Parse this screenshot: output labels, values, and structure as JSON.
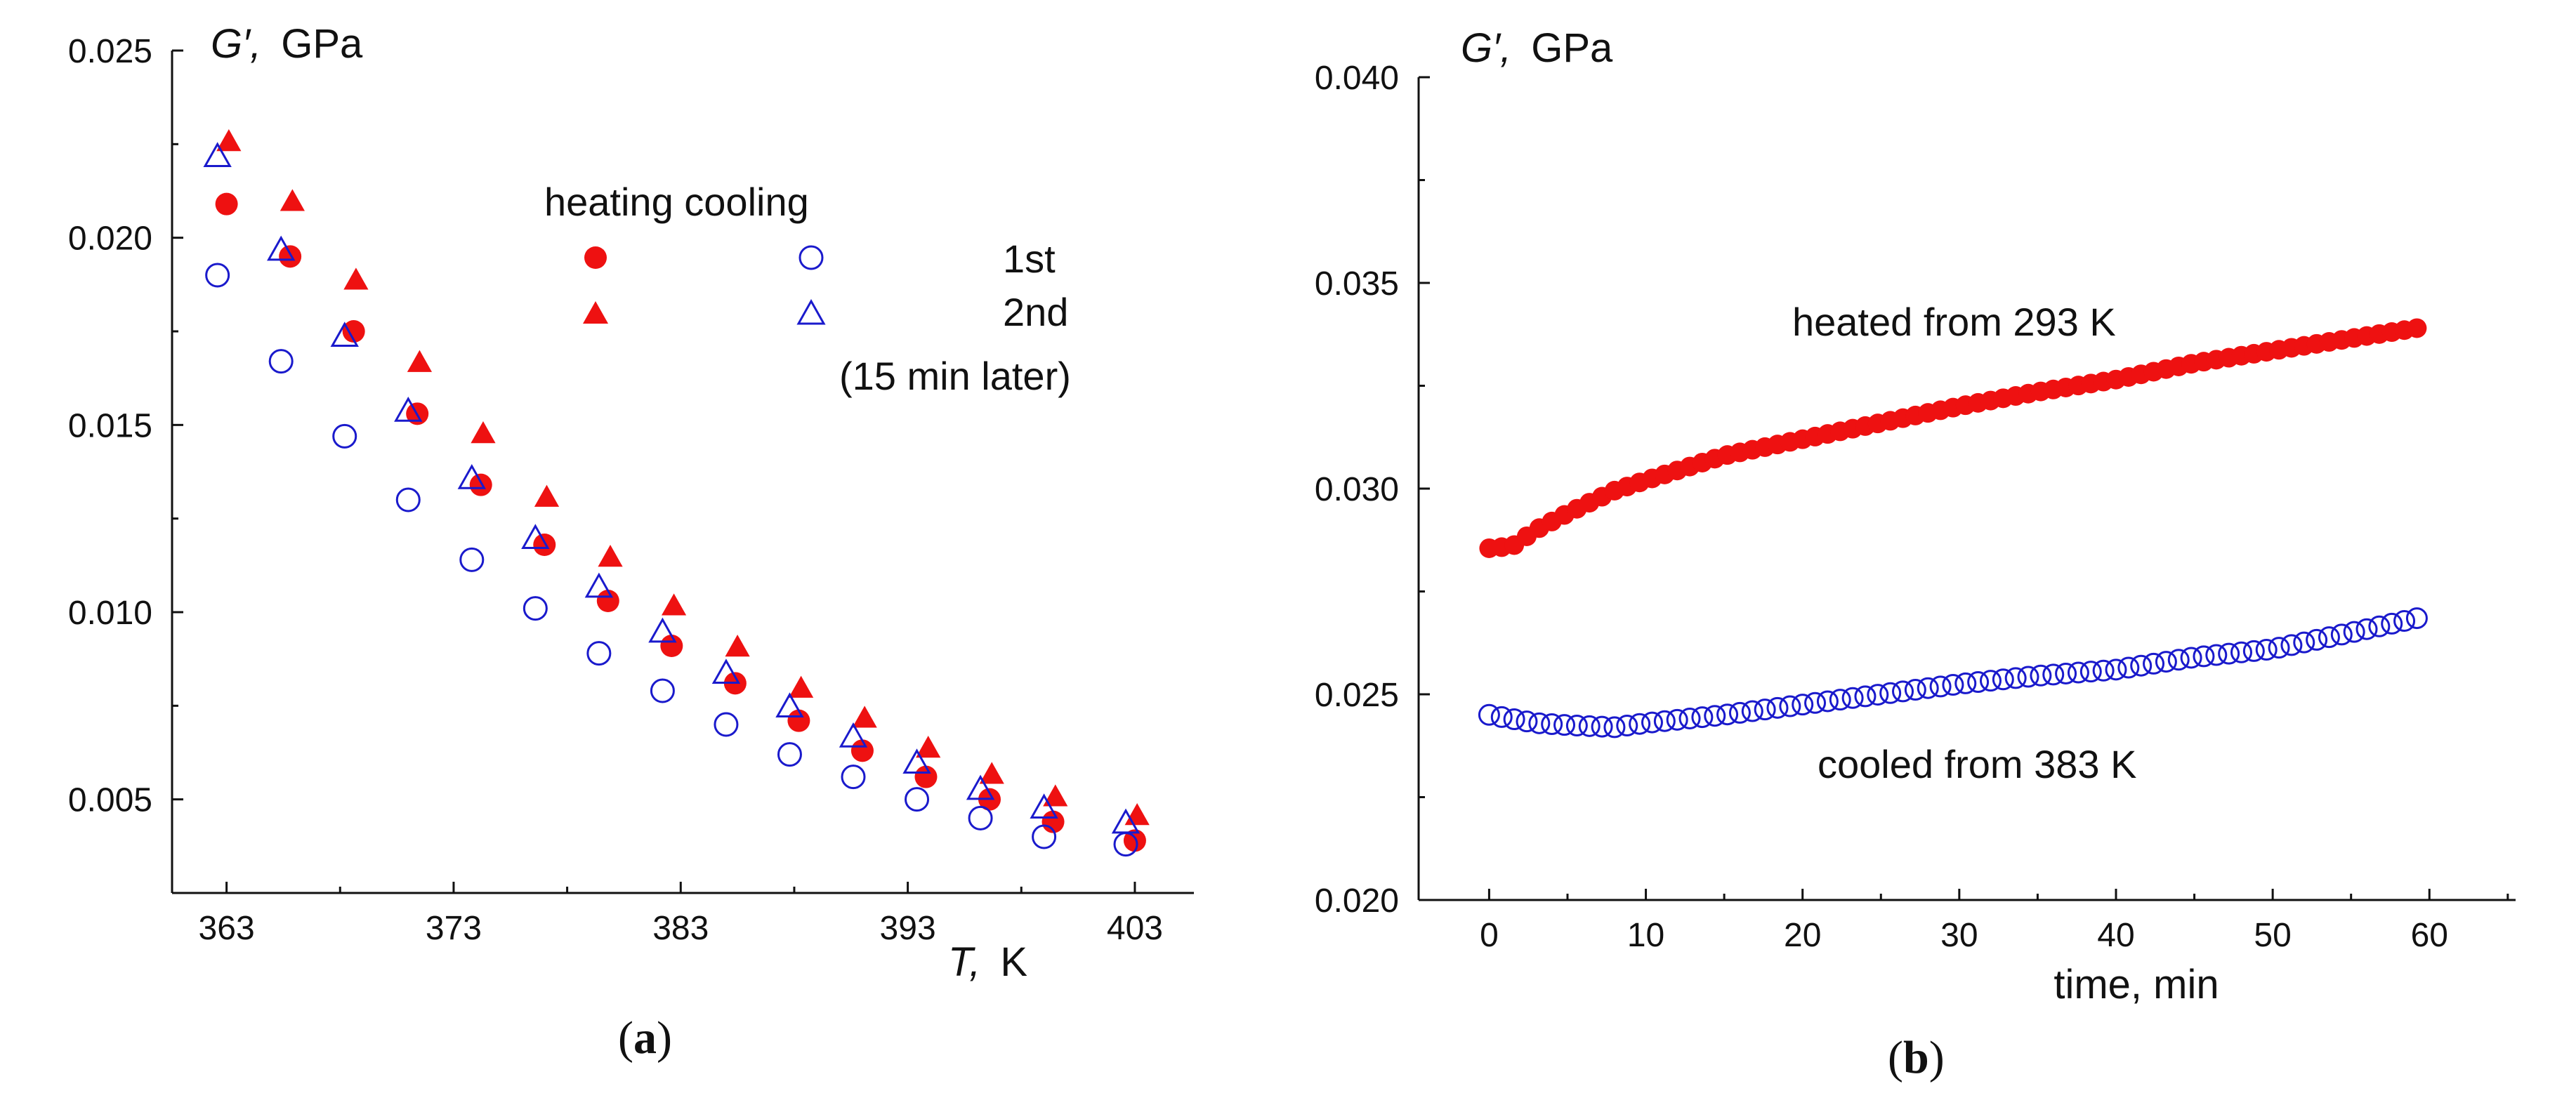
{
  "colors": {
    "red": "#ee1111",
    "blue": "#1a1acc",
    "axis": "#111111"
  },
  "chart_data": [
    {
      "type": "scatter",
      "panel": "(a)",
      "panel_label": "a",
      "ylabel_symbol": "G′,",
      "ylabel_unit": "GPa",
      "xlabel_symbol": "T,",
      "xlabel_unit": "K",
      "xlim": [
        360.6,
        405.6
      ],
      "ylim": [
        0.0025,
        0.025
      ],
      "xticks": [
        363,
        373,
        383,
        393,
        403
      ],
      "yticks": [
        0.005,
        0.01,
        0.015,
        0.02,
        0.025
      ],
      "ytick_labels": [
        "0.005",
        "0.010",
        "0.015",
        "0.020",
        "0.025"
      ],
      "legend": {
        "header": "heating cooling",
        "row1": "1st",
        "row2": "2nd",
        "row2_note": "(15 min later)"
      },
      "series": [
        {
          "name": "1st heating",
          "marker": "filled-circle",
          "color": "#ee1111",
          "x": [
            363,
            365.8,
            368.6,
            371.4,
            374.2,
            377,
            379.8,
            382.6,
            385.4,
            388.2,
            391,
            393.8,
            396.6,
            399.4,
            403
          ],
          "y": [
            0.0209,
            0.0195,
            0.0175,
            0.0153,
            0.0134,
            0.0118,
            0.0103,
            0.0091,
            0.0081,
            0.0071,
            0.0063,
            0.0056,
            0.005,
            0.0044,
            0.0039
          ]
        },
        {
          "name": "1st cooling",
          "marker": "open-circle",
          "color": "#1a1acc",
          "x": [
            362.6,
            365.4,
            368.2,
            371,
            373.8,
            376.6,
            379.4,
            382.2,
            385,
            387.8,
            390.6,
            393.4,
            396.2,
            399,
            402.6
          ],
          "y": [
            0.019,
            0.0167,
            0.0147,
            0.013,
            0.0114,
            0.0101,
            0.0089,
            0.0079,
            0.007,
            0.0062,
            0.0056,
            0.005,
            0.0045,
            0.004,
            0.0038
          ]
        },
        {
          "name": "2nd heating",
          "marker": "filled-triangle",
          "color": "#ee1111",
          "x": [
            363.1,
            365.9,
            368.7,
            371.5,
            374.3,
            377.1,
            379.9,
            382.7,
            385.5,
            388.3,
            391.1,
            393.9,
            396.7,
            399.5,
            403.1
          ],
          "y": [
            0.0226,
            0.021,
            0.0189,
            0.0167,
            0.0148,
            0.0131,
            0.0115,
            0.0102,
            0.0091,
            0.008,
            0.0072,
            0.0064,
            0.0057,
            0.0051,
            0.0046
          ]
        },
        {
          "name": "2nd cooling",
          "marker": "open-triangle",
          "color": "#1a1acc",
          "x": [
            362.6,
            365.4,
            368.2,
            371,
            373.8,
            376.6,
            379.4,
            382.2,
            385,
            387.8,
            390.6,
            393.4,
            396.2,
            399,
            402.6
          ],
          "y": [
            0.0222,
            0.0197,
            0.0174,
            0.0154,
            0.0136,
            0.012,
            0.0107,
            0.0095,
            0.0084,
            0.0075,
            0.0067,
            0.006,
            0.0053,
            0.0048,
            0.0044
          ]
        }
      ]
    },
    {
      "type": "scatter",
      "panel": "(b)",
      "panel_label": "b",
      "ylabel_symbol": "G′,",
      "ylabel_unit": "GPa",
      "xlabel": "time, min",
      "xlim": [
        -4.5,
        65.5
      ],
      "ylim": [
        0.02,
        0.04
      ],
      "xticks": [
        0,
        10,
        20,
        30,
        40,
        50,
        60
      ],
      "yticks": [
        0.02,
        0.025,
        0.03,
        0.035,
        0.04
      ],
      "ytick_labels": [
        "0.020",
        "0.025",
        "0.030",
        "0.035",
        "0.040"
      ],
      "series": [
        {
          "name": "heated from 293 K",
          "label": "heated from 293 K",
          "marker": "filled-circle",
          "color": "#ee1111",
          "t_start": 0,
          "t_step": 0.8,
          "count": 75,
          "y_keypoints": [
            [
              0,
              0.02855
            ],
            [
              1.5,
              0.0286
            ],
            [
              3,
              0.029
            ],
            [
              5,
              0.0294
            ],
            [
              8,
              0.02995
            ],
            [
              10,
              0.0302
            ],
            [
              15,
              0.0308
            ],
            [
              20,
              0.0312
            ],
            [
              25,
              0.0316
            ],
            [
              30,
              0.032
            ],
            [
              35,
              0.03235
            ],
            [
              40,
              0.03265
            ],
            [
              45,
              0.03305
            ],
            [
              50,
              0.03335
            ],
            [
              55,
              0.03365
            ],
            [
              59.2,
              0.0339
            ]
          ]
        },
        {
          "name": "cooled from 383 K",
          "label": "cooled from 383 K",
          "marker": "open-circle",
          "color": "#1a1acc",
          "t_start": 0,
          "t_step": 0.8,
          "count": 75,
          "y_keypoints": [
            [
              0,
              0.0245
            ],
            [
              3,
              0.0243
            ],
            [
              5,
              0.02425
            ],
            [
              8,
              0.0242
            ],
            [
              10,
              0.0243
            ],
            [
              15,
              0.0245
            ],
            [
              20,
              0.02475
            ],
            [
              25,
              0.025
            ],
            [
              30,
              0.02525
            ],
            [
              35,
              0.02545
            ],
            [
              40,
              0.0256
            ],
            [
              45,
              0.0259
            ],
            [
              50,
              0.0261
            ],
            [
              55,
              0.0265
            ],
            [
              59.2,
              0.02685
            ]
          ]
        }
      ]
    }
  ]
}
